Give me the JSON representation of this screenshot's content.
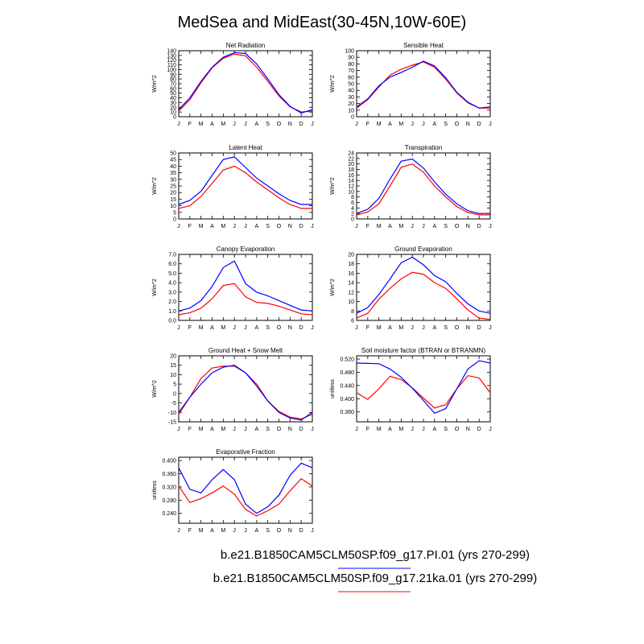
{
  "title": "MedSea and MidEast(30-45N,10W-60E)",
  "colors": {
    "pi": "#0000ff",
    "ka21": "#ff0000"
  },
  "months": [
    "J",
    "F",
    "M",
    "A",
    "M",
    "J",
    "J",
    "A",
    "S",
    "O",
    "N",
    "D",
    "J"
  ],
  "legend": [
    {
      "label": "b.e21.B1850CAM5CLM50SP.f09_g17.PI.01 (yrs 270-299)",
      "color": "#0000ff"
    },
    {
      "label": "b.e21.B1850CAM5CLM50SP.f09_g17.21ka.01 (yrs 270-299)",
      "color": "#ff0000"
    }
  ],
  "chart_data": [
    {
      "type": "line",
      "title": "Net Radiation",
      "ylabel": "W/m^2",
      "ylim": [
        0,
        140
      ],
      "yticks": [
        "0",
        "10",
        "20",
        "30",
        "40",
        "50",
        "60",
        "70",
        "80",
        "90",
        "100",
        "110",
        "120",
        "130",
        "140"
      ],
      "series": [
        {
          "name": "PI",
          "values": [
            15,
            40,
            75,
            105,
            126,
            136,
            134,
            112,
            80,
            47,
            22,
            8,
            15
          ]
        },
        {
          "name": "21ka",
          "values": [
            12,
            36,
            72,
            104,
            124,
            133,
            129,
            105,
            75,
            44,
            21,
            10,
            12
          ]
        }
      ]
    },
    {
      "type": "line",
      "title": "Sensible Heat",
      "ylabel": "W/m^2",
      "ylim": [
        0,
        100
      ],
      "yticks": [
        "0",
        "10",
        "20",
        "30",
        "40",
        "50",
        "60",
        "70",
        "80",
        "90",
        "100"
      ],
      "series": [
        {
          "name": "PI",
          "values": [
            15,
            27,
            47,
            60,
            67,
            75,
            84,
            77,
            59,
            37,
            22,
            13,
            15
          ]
        },
        {
          "name": "21ka",
          "values": [
            13,
            26,
            45,
            63,
            72,
            78,
            83,
            75,
            57,
            36,
            21,
            13,
            13
          ]
        }
      ]
    },
    {
      "type": "line",
      "title": "Latent Heat",
      "ylabel": "W/m^2",
      "ylim": [
        0,
        50
      ],
      "yticks": [
        "0",
        "5",
        "10",
        "15",
        "20",
        "25",
        "30",
        "35",
        "40",
        "45",
        "50"
      ],
      "series": [
        {
          "name": "PI",
          "values": [
            11,
            14,
            21,
            33,
            45,
            47,
            39,
            31,
            25,
            19,
            14,
            11,
            11
          ]
        },
        {
          "name": "21ka",
          "values": [
            8,
            10,
            17,
            27,
            37,
            40,
            35,
            28,
            22,
            16,
            11,
            8,
            8
          ]
        }
      ]
    },
    {
      "type": "line",
      "title": "Transpiration",
      "ylabel": "W/m^2",
      "ylim": [
        0,
        24
      ],
      "yticks": [
        "0",
        "2",
        "4",
        "6",
        "8",
        "10",
        "12",
        "14",
        "16",
        "18",
        "20",
        "22",
        "24"
      ],
      "series": [
        {
          "name": "PI",
          "values": [
            2.0,
            3.5,
            7.5,
            14.5,
            21.0,
            21.8,
            18.5,
            13.5,
            9.0,
            5.5,
            3.0,
            2.0,
            2.0
          ]
        },
        {
          "name": "21ka",
          "values": [
            1.5,
            2.5,
            5.5,
            12.0,
            18.8,
            20.0,
            17.0,
            12.0,
            8.0,
            4.5,
            2.3,
            1.5,
            1.5
          ]
        }
      ]
    },
    {
      "type": "line",
      "title": "Canopy Evaporation",
      "ylabel": "W/m^2",
      "ylim": [
        0,
        7
      ],
      "yticks": [
        "0.0",
        "1.0",
        "2.0",
        "3.0",
        "4.0",
        "5.0",
        "6.0",
        "7.0"
      ],
      "series": [
        {
          "name": "PI",
          "values": [
            1.0,
            1.3,
            2.1,
            3.6,
            5.6,
            6.3,
            3.9,
            3.0,
            2.6,
            2.1,
            1.6,
            1.1,
            1.0
          ]
        },
        {
          "name": "21ka",
          "values": [
            0.6,
            0.8,
            1.3,
            2.3,
            3.7,
            3.9,
            2.5,
            1.9,
            1.8,
            1.5,
            1.1,
            0.7,
            0.6
          ]
        }
      ]
    },
    {
      "type": "line",
      "title": "Ground Evaporation",
      "ylabel": "W/m^2",
      "ylim": [
        6,
        20
      ],
      "yticks": [
        "6",
        "8",
        "10",
        "12",
        "14",
        "16",
        "18",
        "20"
      ],
      "series": [
        {
          "name": "PI",
          "values": [
            7.5,
            8.7,
            11.5,
            14.8,
            18.2,
            19.4,
            17.8,
            15.5,
            14.2,
            11.7,
            9.5,
            8.0,
            7.5
          ]
        },
        {
          "name": "21ka",
          "values": [
            6.5,
            7.5,
            10.5,
            12.8,
            14.8,
            16.2,
            15.8,
            14.0,
            12.8,
            10.6,
            8.2,
            6.5,
            6.2
          ]
        }
      ]
    },
    {
      "type": "line",
      "title": "Ground Heat + Snow Melt",
      "ylabel": "W/m^2",
      "ylim": [
        -15,
        20
      ],
      "yticks": [
        "-15",
        "-10",
        "-5",
        "0",
        "5",
        "10",
        "15",
        "20"
      ],
      "series": [
        {
          "name": "PI",
          "values": [
            -10,
            -2,
            5,
            11,
            14,
            15,
            11,
            4,
            -4,
            -10,
            -13,
            -14,
            -10
          ]
        },
        {
          "name": "21ka",
          "values": [
            -11,
            -2,
            8,
            13.5,
            14.5,
            14.5,
            11,
            5,
            -4,
            -9.5,
            -12.5,
            -13.5,
            -11
          ]
        }
      ]
    },
    {
      "type": "line",
      "title": "Soil moisture factor (BTRAN or BTRANMN)",
      "ylabel": "unitless",
      "ylim": [
        0.33,
        0.53
      ],
      "yticks": [
        "0.360",
        "0.400",
        "0.440",
        "0.480",
        "0.520"
      ],
      "series": [
        {
          "name": "PI",
          "values": [
            0.508,
            0.507,
            0.506,
            0.49,
            0.465,
            0.432,
            0.395,
            0.356,
            0.37,
            0.43,
            0.49,
            0.515,
            0.508
          ]
        },
        {
          "name": "21ka",
          "values": [
            0.418,
            0.398,
            0.43,
            0.468,
            0.458,
            0.433,
            0.402,
            0.372,
            0.382,
            0.43,
            0.47,
            0.463,
            0.418
          ]
        }
      ]
    },
    {
      "type": "line",
      "title": "Evaporative Fraction",
      "ylabel": "unitless",
      "ylim": [
        0.21,
        0.41
      ],
      "yticks": [
        "0.240",
        "0.280",
        "0.320",
        "0.360",
        "0.400"
      ],
      "series": [
        {
          "name": "PI",
          "values": [
            0.378,
            0.313,
            0.302,
            0.342,
            0.373,
            0.342,
            0.268,
            0.24,
            0.26,
            0.295,
            0.355,
            0.392,
            0.378
          ]
        },
        {
          "name": "21ka",
          "values": [
            0.323,
            0.273,
            0.285,
            0.302,
            0.323,
            0.298,
            0.252,
            0.232,
            0.248,
            0.268,
            0.308,
            0.345,
            0.323
          ]
        }
      ]
    }
  ]
}
